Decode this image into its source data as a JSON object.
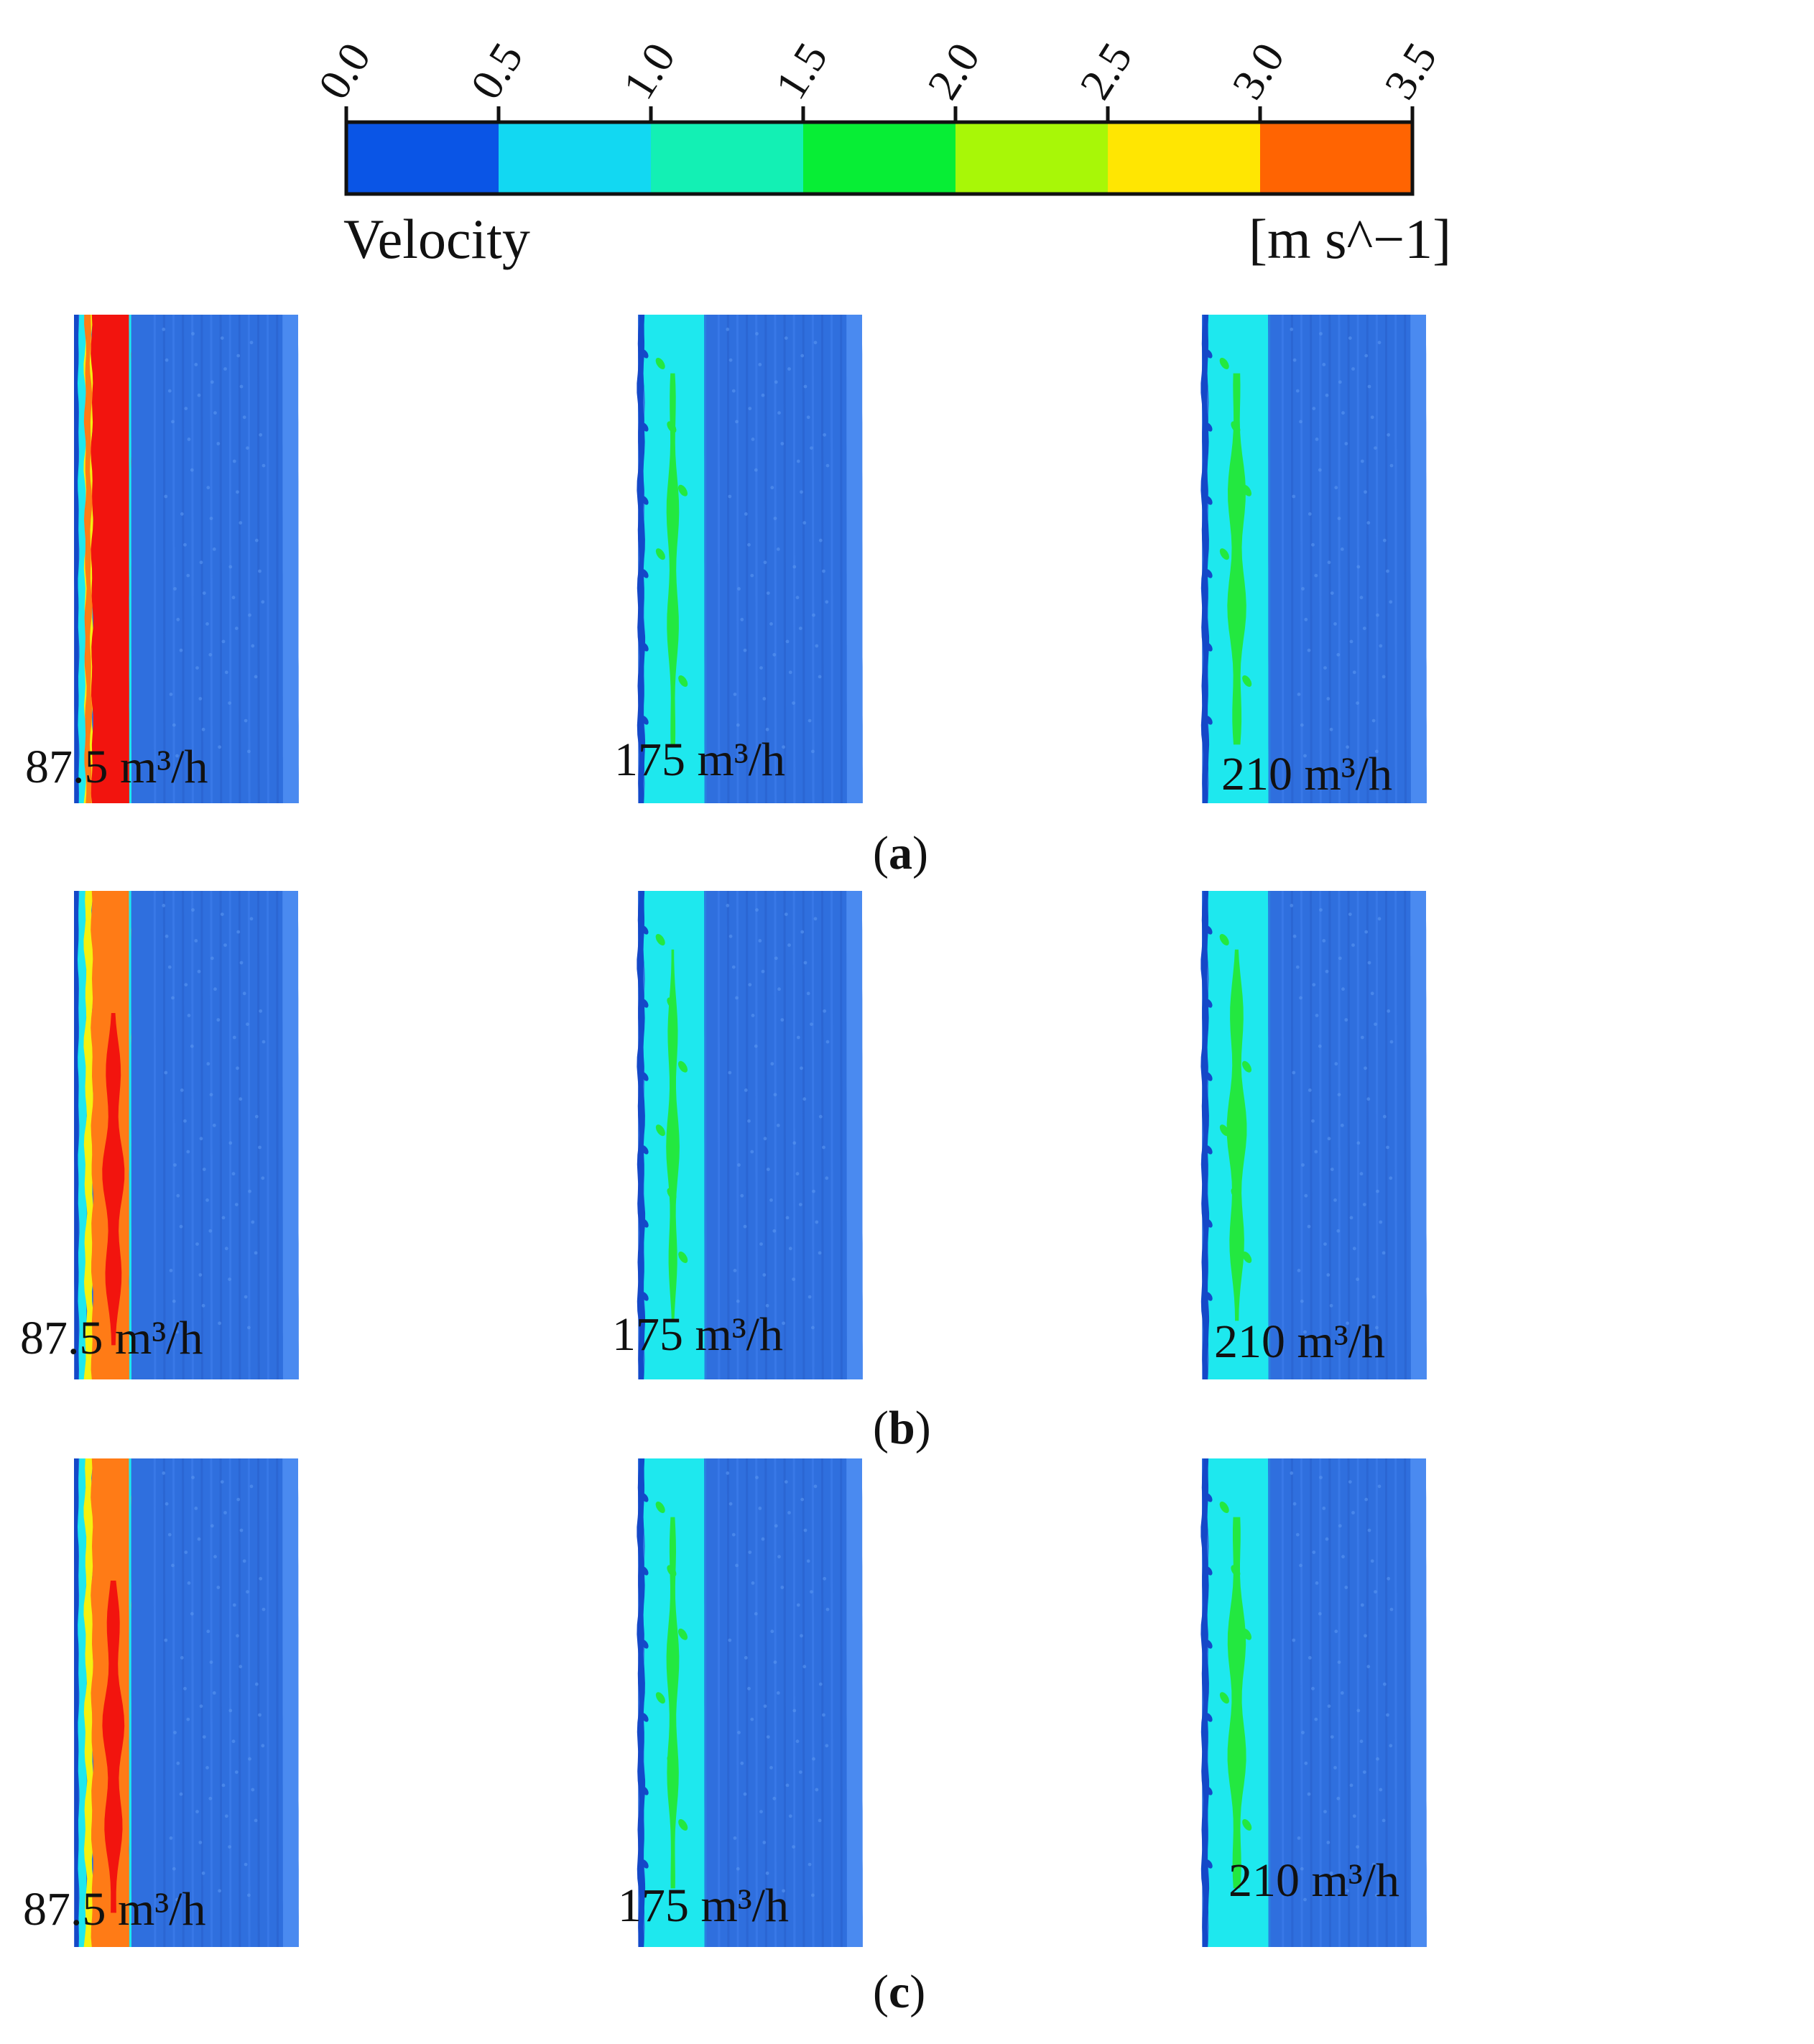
{
  "legend": {
    "title": "Velocity",
    "unit": "[m s^−1]",
    "ticks": [
      "0.0",
      "0.5",
      "1.0",
      "1.5",
      "2.0",
      "2.5",
      "3.0",
      "3.5"
    ],
    "colors": [
      "#0a55e6",
      "#12d8f2",
      "#13f0b4",
      "#07ee35",
      "#a8f707",
      "#ffe602",
      "#ff6402"
    ]
  },
  "colors": {
    "background_blade": "#2f6fde",
    "blade_edge": "#4a8af0",
    "red": "#f2140e",
    "orange": "#ff7b16",
    "yellow": "#f4f210",
    "cyan": "#1ee8ee",
    "green": "#23e840",
    "deep_blue": "#1448c8"
  },
  "rows": [
    {
      "label_open": "(",
      "label_letter": "a",
      "label_close": ")",
      "panels": [
        {
          "flow": "87.5 m³/h",
          "regime": "high"
        },
        {
          "flow": "175 m³/h",
          "regime": "mid"
        },
        {
          "flow": "210 m³/h",
          "regime": "mid2"
        }
      ]
    },
    {
      "label_open": "(",
      "label_letter": "b",
      "label_close": ")",
      "panels": [
        {
          "flow": "87.5 m³/h",
          "regime": "highOrange"
        },
        {
          "flow": "175 m³/h",
          "regime": "mid"
        },
        {
          "flow": "210 m³/h",
          "regime": "mid2"
        }
      ]
    },
    {
      "label_open": "(",
      "label_letter": "c",
      "label_close": ")",
      "panels": [
        {
          "flow": "87.5 m³/h",
          "regime": "highOrange"
        },
        {
          "flow": "175 m³/h",
          "regime": "mid"
        },
        {
          "flow": "210 m³/h",
          "regime": "mid2"
        }
      ]
    }
  ]
}
